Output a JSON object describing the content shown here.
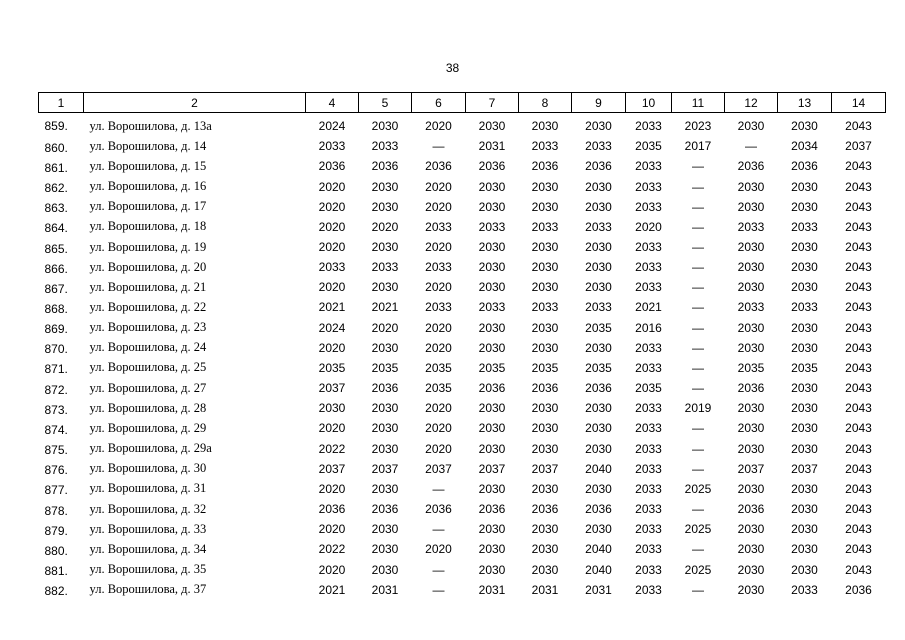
{
  "page_number": "38",
  "table": {
    "header": [
      "1",
      "2",
      "4",
      "5",
      "6",
      "7",
      "8",
      "9",
      "10",
      "11",
      "12",
      "13",
      "14"
    ],
    "rows": [
      [
        "859.",
        "ул. Ворошилова, д. 13а",
        "2024",
        "2030",
        "2020",
        "2030",
        "2030",
        "2030",
        "2033",
        "2023",
        "2030",
        "2030",
        "2043"
      ],
      [
        "860.",
        "ул. Ворошилова, д. 14",
        "2033",
        "2033",
        "—",
        "2031",
        "2033",
        "2033",
        "2035",
        "2017",
        "—",
        "2034",
        "2037"
      ],
      [
        "861.",
        "ул. Ворошилова, д. 15",
        "2036",
        "2036",
        "2036",
        "2036",
        "2036",
        "2036",
        "2033",
        "—",
        "2036",
        "2036",
        "2043"
      ],
      [
        "862.",
        "ул. Ворошилова, д. 16",
        "2020",
        "2030",
        "2020",
        "2030",
        "2030",
        "2030",
        "2033",
        "—",
        "2030",
        "2030",
        "2043"
      ],
      [
        "863.",
        "ул. Ворошилова, д. 17",
        "2020",
        "2030",
        "2020",
        "2030",
        "2030",
        "2030",
        "2033",
        "—",
        "2030",
        "2030",
        "2043"
      ],
      [
        "864.",
        "ул. Ворошилова, д. 18",
        "2020",
        "2020",
        "2033",
        "2033",
        "2033",
        "2033",
        "2020",
        "—",
        "2033",
        "2033",
        "2043"
      ],
      [
        "865.",
        "ул. Ворошилова, д. 19",
        "2020",
        "2030",
        "2020",
        "2030",
        "2030",
        "2030",
        "2033",
        "—",
        "2030",
        "2030",
        "2043"
      ],
      [
        "866.",
        "ул. Ворошилова, д. 20",
        "2033",
        "2033",
        "2033",
        "2030",
        "2030",
        "2030",
        "2033",
        "—",
        "2030",
        "2030",
        "2043"
      ],
      [
        "867.",
        "ул. Ворошилова, д. 21",
        "2020",
        "2030",
        "2020",
        "2030",
        "2030",
        "2030",
        "2033",
        "—",
        "2030",
        "2030",
        "2043"
      ],
      [
        "868.",
        "ул. Ворошилова, д. 22",
        "2021",
        "2021",
        "2033",
        "2033",
        "2033",
        "2033",
        "2021",
        "—",
        "2033",
        "2033",
        "2043"
      ],
      [
        "869.",
        "ул. Ворошилова, д. 23",
        "2024",
        "2020",
        "2020",
        "2030",
        "2030",
        "2035",
        "2016",
        "—",
        "2030",
        "2030",
        "2043"
      ],
      [
        "870.",
        "ул. Ворошилова, д. 24",
        "2020",
        "2030",
        "2020",
        "2030",
        "2030",
        "2030",
        "2033",
        "—",
        "2030",
        "2030",
        "2043"
      ],
      [
        "871.",
        "ул. Ворошилова, д. 25",
        "2035",
        "2035",
        "2035",
        "2035",
        "2035",
        "2035",
        "2033",
        "—",
        "2035",
        "2035",
        "2043"
      ],
      [
        "872.",
        "ул. Ворошилова, д. 27",
        "2037",
        "2036",
        "2035",
        "2036",
        "2036",
        "2036",
        "2035",
        "—",
        "2036",
        "2030",
        "2043"
      ],
      [
        "873.",
        "ул. Ворошилова, д. 28",
        "2030",
        "2030",
        "2020",
        "2030",
        "2030",
        "2030",
        "2033",
        "2019",
        "2030",
        "2030",
        "2043"
      ],
      [
        "874.",
        "ул. Ворошилова, д. 29",
        "2020",
        "2030",
        "2020",
        "2030",
        "2030",
        "2030",
        "2033",
        "—",
        "2030",
        "2030",
        "2043"
      ],
      [
        "875.",
        "ул. Ворошилова, д. 29а",
        "2022",
        "2030",
        "2020",
        "2030",
        "2030",
        "2030",
        "2033",
        "—",
        "2030",
        "2030",
        "2043"
      ],
      [
        "876.",
        "ул. Ворошилова, д. 30",
        "2037",
        "2037",
        "2037",
        "2037",
        "2037",
        "2040",
        "2033",
        "—",
        "2037",
        "2037",
        "2043"
      ],
      [
        "877.",
        "ул. Ворошилова, д. 31",
        "2020",
        "2030",
        "—",
        "2030",
        "2030",
        "2030",
        "2033",
        "2025",
        "2030",
        "2030",
        "2043"
      ],
      [
        "878.",
        "ул. Ворошилова, д. 32",
        "2036",
        "2036",
        "2036",
        "2036",
        "2036",
        "2036",
        "2033",
        "—",
        "2036",
        "2030",
        "2043"
      ],
      [
        "879.",
        "ул. Ворошилова, д. 33",
        "2020",
        "2030",
        "—",
        "2030",
        "2030",
        "2030",
        "2033",
        "2025",
        "2030",
        "2030",
        "2043"
      ],
      [
        "880.",
        "ул. Ворошилова, д. 34",
        "2022",
        "2030",
        "2020",
        "2030",
        "2030",
        "2040",
        "2033",
        "—",
        "2030",
        "2030",
        "2043"
      ],
      [
        "881.",
        "ул. Ворошилова, д. 35",
        "2020",
        "2030",
        "—",
        "2030",
        "2030",
        "2040",
        "2033",
        "2025",
        "2030",
        "2030",
        "2043"
      ],
      [
        "882.",
        "ул. Ворошилова, д. 37",
        "2021",
        "2031",
        "—",
        "2031",
        "2031",
        "2031",
        "2033",
        "—",
        "2030",
        "2033",
        "2036"
      ]
    ]
  }
}
